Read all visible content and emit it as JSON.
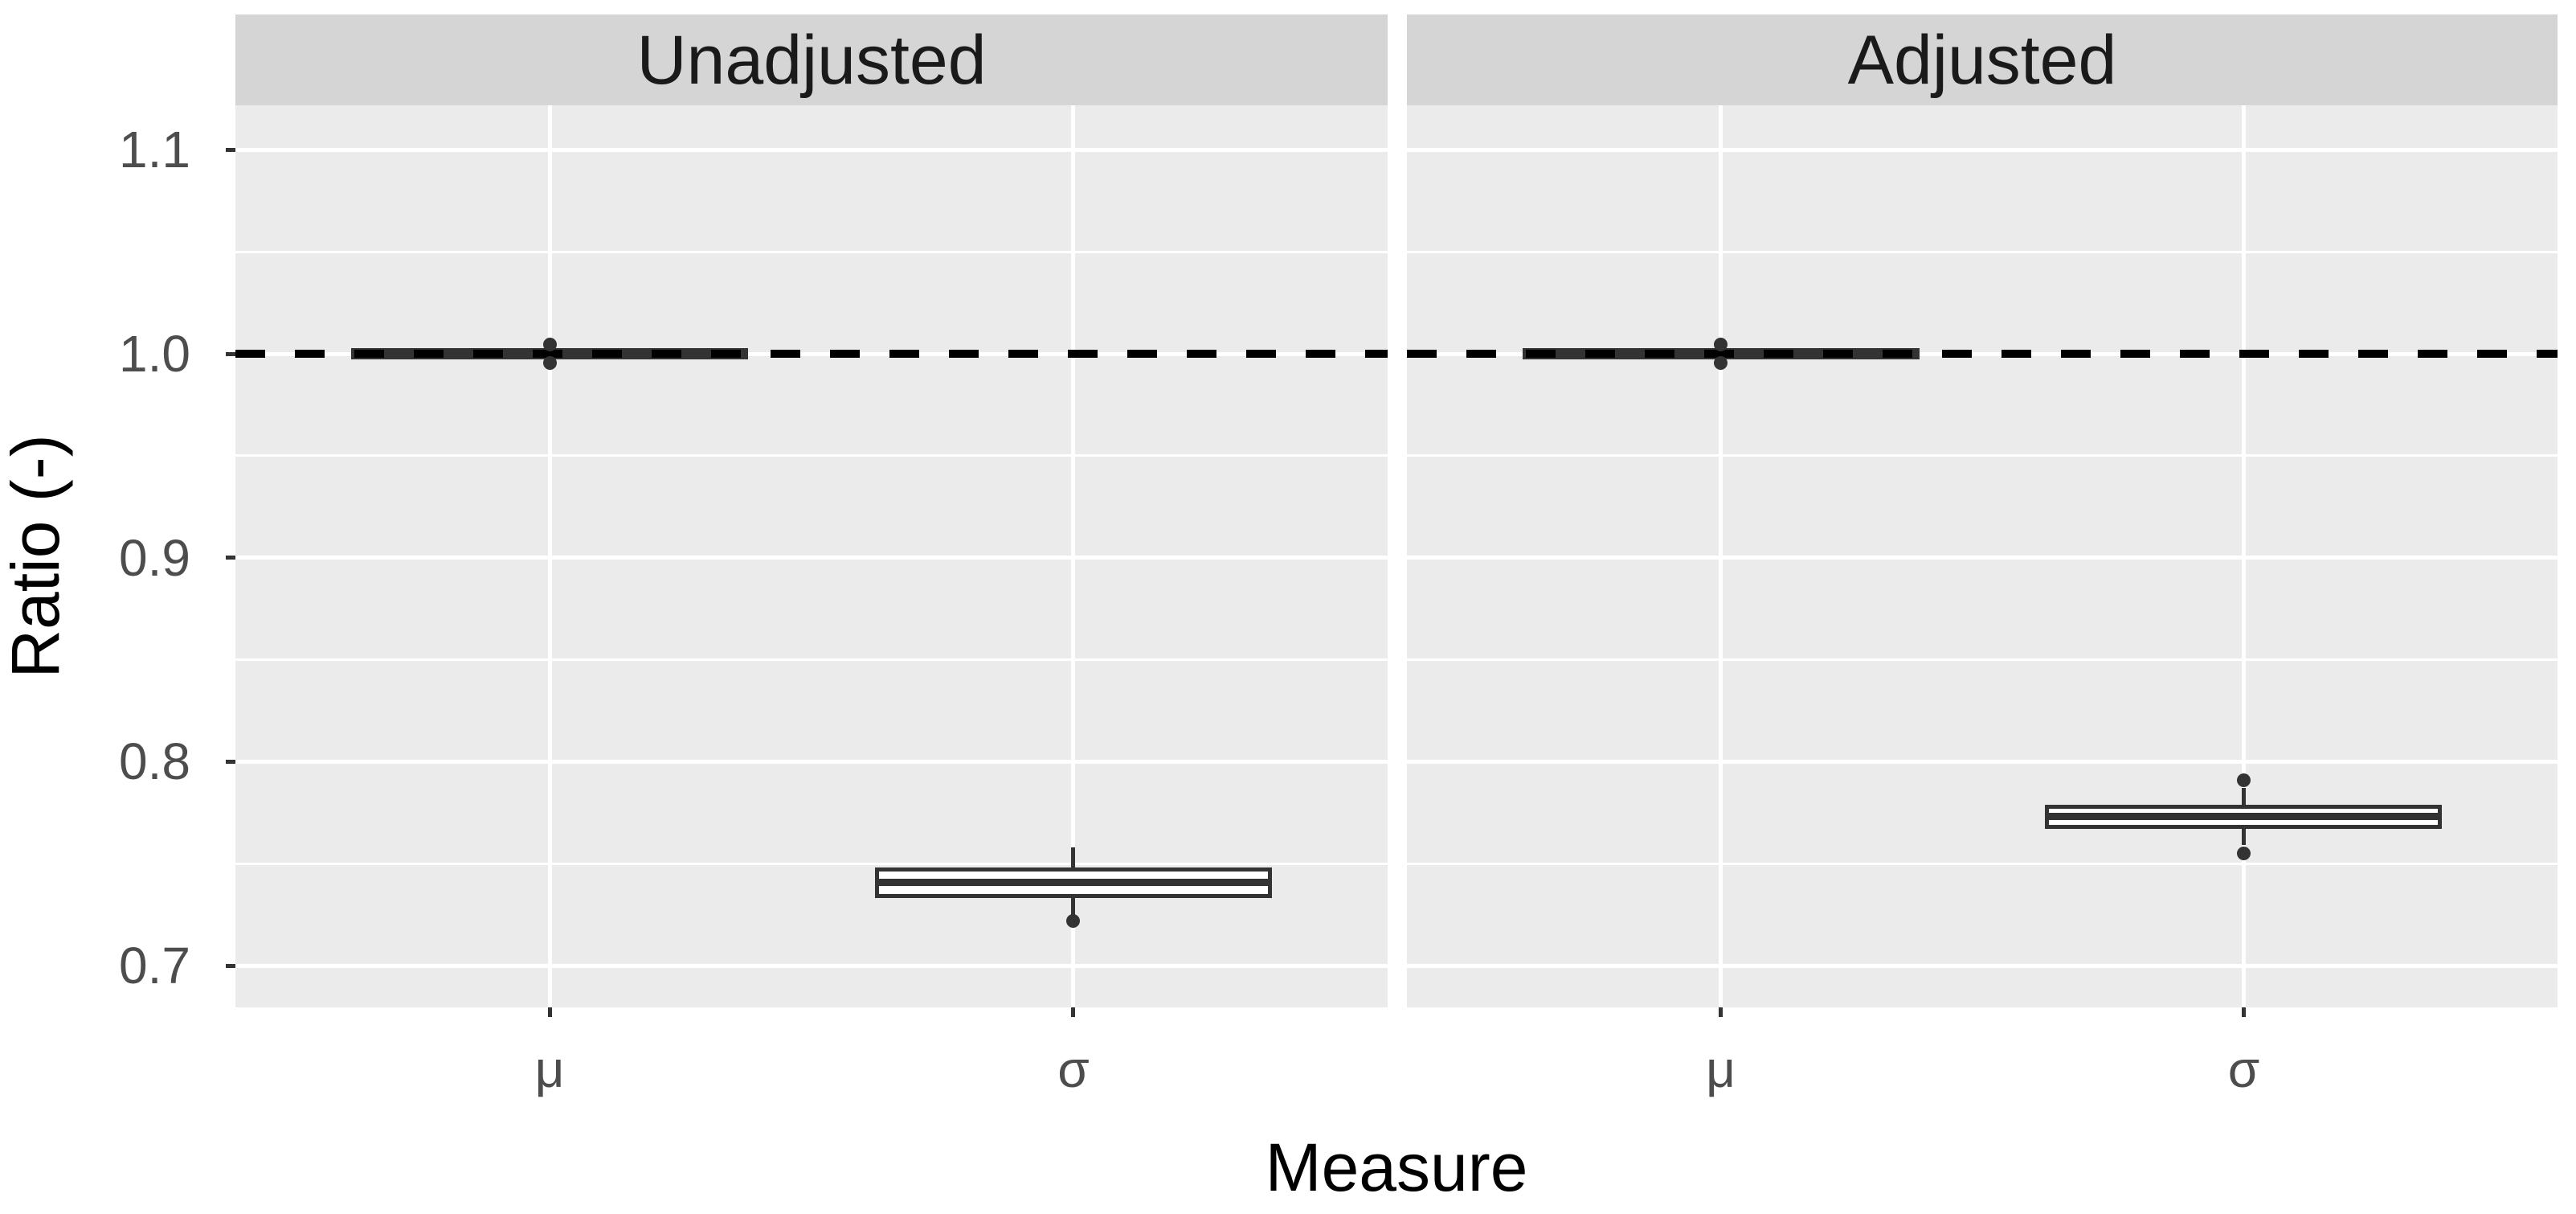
{
  "chart_data": {
    "type": "boxplot",
    "title": "",
    "xlabel": "Measure",
    "ylabel": "Ratio (-)",
    "categories": [
      "μ",
      "σ"
    ],
    "y_ticks": [
      {
        "label": "1.1",
        "value": 1.1
      },
      {
        "label": "1.0",
        "value": 1.0
      },
      {
        "label": "0.9",
        "value": 0.9
      },
      {
        "label": "0.8",
        "value": 0.8
      },
      {
        "label": "0.7",
        "value": 0.7
      }
    ],
    "y_minor_ticks": [
      1.05,
      0.95,
      0.85,
      0.75
    ],
    "ylim": [
      0.684,
      1.12
    ],
    "grid": true,
    "legend": null,
    "reference_line": {
      "value": 1.0,
      "style": "dashed",
      "color": "#000000"
    },
    "facets": [
      {
        "label": "Unadjusted",
        "boxes": [
          {
            "category": "μ",
            "q1": 0.9993,
            "median": 1.0,
            "q3": 1.0007,
            "whisker_low": 0.9993,
            "whisker_high": 1.0007,
            "outliers": [
              1.0045,
              0.9955
            ]
          },
          {
            "category": "σ",
            "q1": 0.735,
            "median": 0.741,
            "q3": 0.746,
            "whisker_low": 0.725,
            "whisker_high": 0.758,
            "outliers": [
              0.722
            ]
          }
        ]
      },
      {
        "label": "Adjusted",
        "boxes": [
          {
            "category": "μ",
            "q1": 0.9993,
            "median": 1.0,
            "q3": 1.0007,
            "whisker_low": 0.9993,
            "whisker_high": 1.0007,
            "outliers": [
              1.0045,
              0.9955
            ]
          },
          {
            "category": "σ",
            "q1": 0.769,
            "median": 0.773,
            "q3": 0.777,
            "whisker_low": 0.759,
            "whisker_high": 0.787,
            "outliers": [
              0.791,
              0.755
            ]
          }
        ]
      }
    ],
    "colors": {
      "panel_background": "#EBEBEB",
      "strip_background": "#D5D5D5",
      "gridline": "#FFFFFF",
      "box_stroke": "#333333",
      "box_fill": "#FFFFFF",
      "outlier": "#333333",
      "axis_text": "#4D4D4D",
      "axis_title": "#000000",
      "strip_text": "#1A1A1A",
      "reference_line": "#000000",
      "tick_mark": "#333333"
    }
  }
}
